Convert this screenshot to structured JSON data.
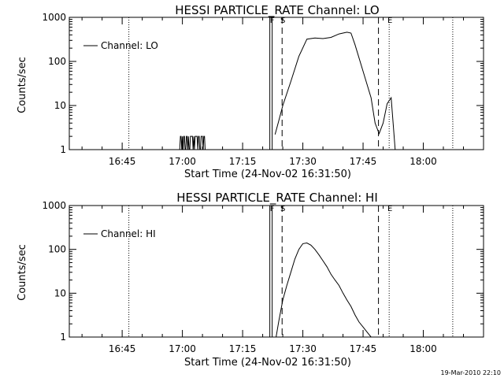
{
  "footer_timestamp": "19-Mar-2010 22:10",
  "chart_data": [
    {
      "type": "line",
      "title": "HESSI PARTICLE_RATE Channel: LO",
      "xlabel": "Start Time (24-Nov-02 16:31:50)",
      "ylabel": "Counts/sec",
      "legend": "Channel: LO",
      "legend_position": "top-left",
      "yscale": "log",
      "xlim": [
        "16:31:50",
        "18:15:00"
      ],
      "ylim": [
        1,
        1000
      ],
      "x_ticks": [
        "16:45",
        "17:00",
        "17:15",
        "17:30",
        "17:45",
        "18:00"
      ],
      "y_ticks": [
        "1",
        "10",
        "100",
        "1000"
      ],
      "markers": [
        {
          "label": "",
          "time": "16:46:40",
          "style": "dotted"
        },
        {
          "label": "F",
          "time": "17:22:10",
          "style": "solid"
        },
        {
          "label": "S",
          "time": "17:24:50",
          "style": "dashed"
        },
        {
          "label": "",
          "time": "17:48:50",
          "style": "dashed"
        },
        {
          "label": "E",
          "time": "17:51:30",
          "style": "dotted"
        },
        {
          "label": "",
          "time": "18:07:20",
          "style": "dotted"
        }
      ],
      "series": [
        {
          "name": "Channel: LO",
          "x": [
            "17:23:05",
            "17:24:00",
            "17:25:00",
            "17:27:00",
            "17:29:00",
            "17:31:00",
            "17:33:00",
            "17:35:00",
            "17:37:00",
            "17:39:00",
            "17:41:00",
            "17:42:00",
            "17:43:00",
            "17:45:00",
            "17:47:00",
            "17:48:00",
            "17:49:00",
            "17:50:00",
            "17:51:00",
            "17:52:00",
            "17:53:00"
          ],
          "values": [
            2.2,
            4.5,
            10,
            35,
            130,
            320,
            340,
            330,
            350,
            420,
            460,
            440,
            240,
            60,
            15,
            4,
            2.3,
            4,
            11,
            15,
            1
          ]
        },
        {
          "name": "",
          "x": [
            "16:59:20",
            "16:59:30",
            "16:59:40",
            "16:59:50",
            "17:00:00",
            "17:00:10",
            "17:00:20",
            "17:00:30",
            "17:00:40",
            "17:00:50",
            "17:01:00",
            "17:01:10",
            "17:01:20",
            "17:01:30",
            "17:01:40",
            "17:01:50",
            "17:02:00",
            "17:02:10",
            "17:02:20",
            "17:02:30",
            "17:02:40",
            "17:02:50",
            "17:03:00",
            "17:03:10",
            "17:03:20",
            "17:03:30",
            "17:03:40",
            "17:03:50",
            "17:04:00",
            "17:04:10",
            "17:04:20",
            "17:04:30",
            "17:04:40",
            "17:04:50",
            "17:05:00",
            "17:05:10",
            "17:05:20",
            "17:05:30",
            "17:05:40",
            "17:05:50"
          ],
          "values": [
            1,
            2,
            2,
            1,
            2,
            1,
            2,
            2,
            1,
            1,
            2,
            2,
            1,
            2,
            1,
            1,
            2,
            2,
            2,
            2,
            1,
            2,
            1,
            2,
            2,
            2,
            2,
            1,
            2,
            2,
            1,
            1,
            2,
            2,
            2,
            1,
            2,
            2,
            1,
            1
          ]
        }
      ]
    },
    {
      "type": "line",
      "title": "HESSI PARTICLE_RATE Channel: HI",
      "xlabel": "Start Time (24-Nov-02 16:31:50)",
      "ylabel": "Counts/sec",
      "legend": "Channel: HI",
      "legend_position": "top-left",
      "yscale": "log",
      "xlim": [
        "16:31:50",
        "18:15:00"
      ],
      "ylim": [
        1,
        1000
      ],
      "x_ticks": [
        "16:45",
        "17:00",
        "17:15",
        "17:30",
        "17:45",
        "18:00"
      ],
      "y_ticks": [
        "1",
        "10",
        "100",
        "1000"
      ],
      "markers": [
        {
          "label": "",
          "time": "16:46:40",
          "style": "dotted"
        },
        {
          "label": "F",
          "time": "17:22:10",
          "style": "solid"
        },
        {
          "label": "S",
          "time": "17:24:50",
          "style": "dashed"
        },
        {
          "label": "",
          "time": "17:48:50",
          "style": "dashed"
        },
        {
          "label": "E",
          "time": "17:51:30",
          "style": "dotted"
        },
        {
          "label": "",
          "time": "18:07:20",
          "style": "dotted"
        }
      ],
      "series": [
        {
          "name": "Channel: HI",
          "x": [
            "17:23:20",
            "17:24:00",
            "17:25:00",
            "17:26:00",
            "17:27:00",
            "17:28:00",
            "17:29:00",
            "17:30:00",
            "17:31:00",
            "17:32:00",
            "17:33:00",
            "17:34:00",
            "17:35:00",
            "17:36:00",
            "17:37:00",
            "17:38:00",
            "17:39:00",
            "17:40:00",
            "17:41:00",
            "17:42:00",
            "17:43:00",
            "17:44:00",
            "17:45:00",
            "17:46:00",
            "17:47:00"
          ],
          "values": [
            1,
            2.3,
            7,
            15,
            30,
            60,
            100,
            135,
            140,
            125,
            100,
            75,
            55,
            40,
            27,
            20,
            15,
            10,
            7,
            5,
            3.2,
            2.2,
            1.7,
            1.3,
            1
          ]
        }
      ]
    }
  ]
}
